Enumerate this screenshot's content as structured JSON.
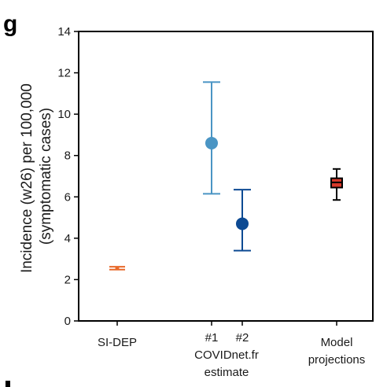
{
  "panel_label": "g",
  "chart_data": {
    "type": "scatter",
    "ylabel_lines": [
      "Incidence (w26) per 100,000",
      "(symptomatic cases)"
    ],
    "ylim": [
      0,
      14
    ],
    "yticks": [
      0,
      2,
      4,
      6,
      8,
      10,
      12,
      14
    ],
    "grid": false,
    "x_groups": [
      {
        "lines": [
          "SI-DEP"
        ]
      },
      {
        "lines": [
          "COVIDnet.fr",
          "estimate"
        ]
      },
      {
        "lines": [
          "Model",
          "projections"
        ]
      }
    ],
    "sub_labels": [
      "#1",
      "#2"
    ],
    "points": [
      {
        "group": 0,
        "kind": "errorbar",
        "value": 2.55,
        "low": 2.48,
        "high": 2.62,
        "color": "#e8692a"
      },
      {
        "group": 1,
        "sub": 0,
        "kind": "errorbar",
        "value": 8.6,
        "low": 6.15,
        "high": 11.55,
        "color": "#4a95c4"
      },
      {
        "group": 1,
        "sub": 1,
        "kind": "errorbar",
        "value": 4.7,
        "low": 3.4,
        "high": 6.35,
        "color": "#0d4a93"
      },
      {
        "group": 2,
        "kind": "box",
        "median": 6.7,
        "q1": 6.45,
        "q3": 6.9,
        "whisker_low": 5.85,
        "whisker_high": 7.35,
        "color": "#d83a2b"
      }
    ]
  }
}
